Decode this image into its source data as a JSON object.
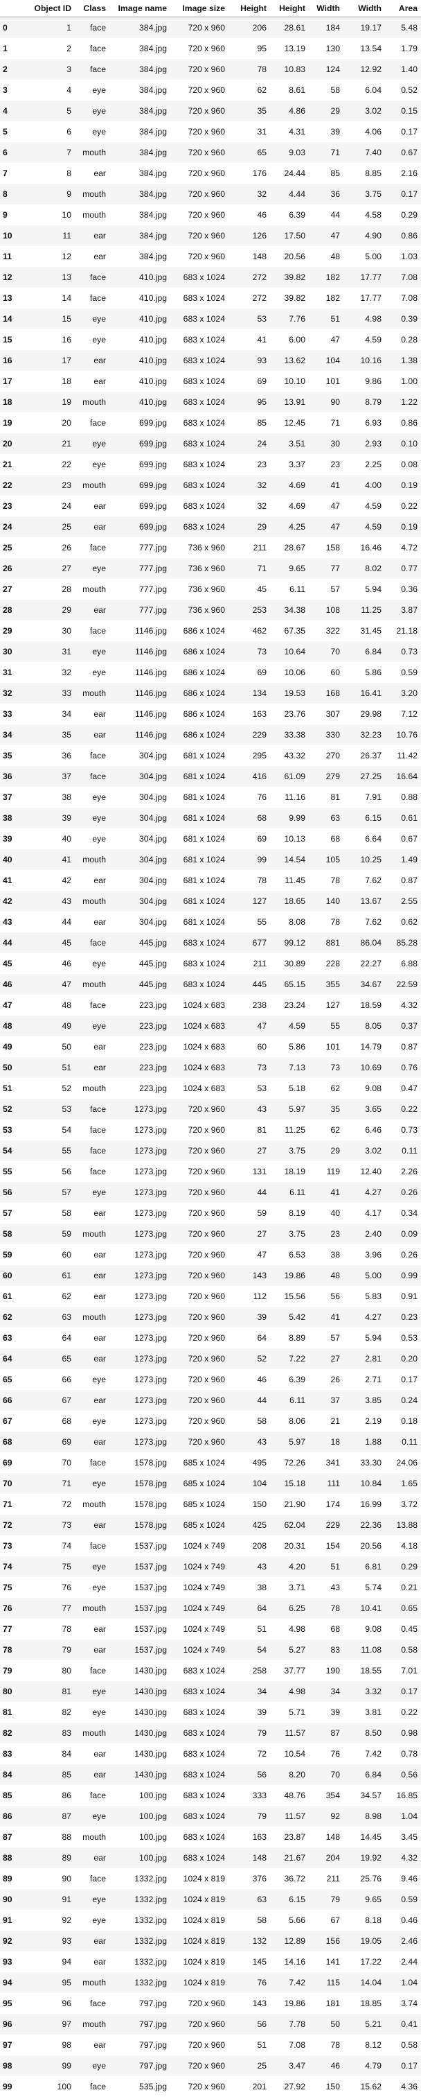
{
  "table": {
    "index_header": "",
    "columns": [
      "Object ID",
      "Class",
      "Image name",
      "Image size",
      "Height",
      "Height",
      "Width",
      "Width",
      "Area"
    ],
    "rows": [
      [
        "0",
        "1",
        "face",
        "384.jpg",
        "720 x 960",
        "206",
        "28.61",
        "184",
        "19.17",
        "5.48"
      ],
      [
        "1",
        "2",
        "face",
        "384.jpg",
        "720 x 960",
        "95",
        "13.19",
        "130",
        "13.54",
        "1.79"
      ],
      [
        "2",
        "3",
        "face",
        "384.jpg",
        "720 x 960",
        "78",
        "10.83",
        "124",
        "12.92",
        "1.40"
      ],
      [
        "3",
        "4",
        "eye",
        "384.jpg",
        "720 x 960",
        "62",
        "8.61",
        "58",
        "6.04",
        "0.52"
      ],
      [
        "4",
        "5",
        "eye",
        "384.jpg",
        "720 x 960",
        "35",
        "4.86",
        "29",
        "3.02",
        "0.15"
      ],
      [
        "5",
        "6",
        "eye",
        "384.jpg",
        "720 x 960",
        "31",
        "4.31",
        "39",
        "4.06",
        "0.17"
      ],
      [
        "6",
        "7",
        "mouth",
        "384.jpg",
        "720 x 960",
        "65",
        "9.03",
        "71",
        "7.40",
        "0.67"
      ],
      [
        "7",
        "8",
        "ear",
        "384.jpg",
        "720 x 960",
        "176",
        "24.44",
        "85",
        "8.85",
        "2.16"
      ],
      [
        "8",
        "9",
        "mouth",
        "384.jpg",
        "720 x 960",
        "32",
        "4.44",
        "36",
        "3.75",
        "0.17"
      ],
      [
        "9",
        "10",
        "mouth",
        "384.jpg",
        "720 x 960",
        "46",
        "6.39",
        "44",
        "4.58",
        "0.29"
      ],
      [
        "10",
        "11",
        "ear",
        "384.jpg",
        "720 x 960",
        "126",
        "17.50",
        "47",
        "4.90",
        "0.86"
      ],
      [
        "11",
        "12",
        "ear",
        "384.jpg",
        "720 x 960",
        "148",
        "20.56",
        "48",
        "5.00",
        "1.03"
      ],
      [
        "12",
        "13",
        "face",
        "410.jpg",
        "683 x 1024",
        "272",
        "39.82",
        "182",
        "17.77",
        "7.08"
      ],
      [
        "13",
        "14",
        "face",
        "410.jpg",
        "683 x 1024",
        "272",
        "39.82",
        "182",
        "17.77",
        "7.08"
      ],
      [
        "14",
        "15",
        "eye",
        "410.jpg",
        "683 x 1024",
        "53",
        "7.76",
        "51",
        "4.98",
        "0.39"
      ],
      [
        "15",
        "16",
        "eye",
        "410.jpg",
        "683 x 1024",
        "41",
        "6.00",
        "47",
        "4.59",
        "0.28"
      ],
      [
        "16",
        "17",
        "ear",
        "410.jpg",
        "683 x 1024",
        "93",
        "13.62",
        "104",
        "10.16",
        "1.38"
      ],
      [
        "17",
        "18",
        "ear",
        "410.jpg",
        "683 x 1024",
        "69",
        "10.10",
        "101",
        "9.86",
        "1.00"
      ],
      [
        "18",
        "19",
        "mouth",
        "410.jpg",
        "683 x 1024",
        "95",
        "13.91",
        "90",
        "8.79",
        "1.22"
      ],
      [
        "19",
        "20",
        "face",
        "699.jpg",
        "683 x 1024",
        "85",
        "12.45",
        "71",
        "6.93",
        "0.86"
      ],
      [
        "20",
        "21",
        "eye",
        "699.jpg",
        "683 x 1024",
        "24",
        "3.51",
        "30",
        "2.93",
        "0.10"
      ],
      [
        "21",
        "22",
        "eye",
        "699.jpg",
        "683 x 1024",
        "23",
        "3.37",
        "23",
        "2.25",
        "0.08"
      ],
      [
        "22",
        "23",
        "mouth",
        "699.jpg",
        "683 x 1024",
        "32",
        "4.69",
        "41",
        "4.00",
        "0.19"
      ],
      [
        "23",
        "24",
        "ear",
        "699.jpg",
        "683 x 1024",
        "32",
        "4.69",
        "47",
        "4.59",
        "0.22"
      ],
      [
        "24",
        "25",
        "ear",
        "699.jpg",
        "683 x 1024",
        "29",
        "4.25",
        "47",
        "4.59",
        "0.19"
      ],
      [
        "25",
        "26",
        "face",
        "777.jpg",
        "736 x 960",
        "211",
        "28.67",
        "158",
        "16.46",
        "4.72"
      ],
      [
        "26",
        "27",
        "eye",
        "777.jpg",
        "736 x 960",
        "71",
        "9.65",
        "77",
        "8.02",
        "0.77"
      ],
      [
        "27",
        "28",
        "mouth",
        "777.jpg",
        "736 x 960",
        "45",
        "6.11",
        "57",
        "5.94",
        "0.36"
      ],
      [
        "28",
        "29",
        "ear",
        "777.jpg",
        "736 x 960",
        "253",
        "34.38",
        "108",
        "11.25",
        "3.87"
      ],
      [
        "29",
        "30",
        "face",
        "1146.jpg",
        "686 x 1024",
        "462",
        "67.35",
        "322",
        "31.45",
        "21.18"
      ],
      [
        "30",
        "31",
        "eye",
        "1146.jpg",
        "686 x 1024",
        "73",
        "10.64",
        "70",
        "6.84",
        "0.73"
      ],
      [
        "31",
        "32",
        "eye",
        "1146.jpg",
        "686 x 1024",
        "69",
        "10.06",
        "60",
        "5.86",
        "0.59"
      ],
      [
        "32",
        "33",
        "mouth",
        "1146.jpg",
        "686 x 1024",
        "134",
        "19.53",
        "168",
        "16.41",
        "3.20"
      ],
      [
        "33",
        "34",
        "ear",
        "1146.jpg",
        "686 x 1024",
        "163",
        "23.76",
        "307",
        "29.98",
        "7.12"
      ],
      [
        "34",
        "35",
        "ear",
        "1146.jpg",
        "686 x 1024",
        "229",
        "33.38",
        "330",
        "32.23",
        "10.76"
      ],
      [
        "35",
        "36",
        "face",
        "304.jpg",
        "681 x 1024",
        "295",
        "43.32",
        "270",
        "26.37",
        "11.42"
      ],
      [
        "36",
        "37",
        "face",
        "304.jpg",
        "681 x 1024",
        "416",
        "61.09",
        "279",
        "27.25",
        "16.64"
      ],
      [
        "37",
        "38",
        "eye",
        "304.jpg",
        "681 x 1024",
        "76",
        "11.16",
        "81",
        "7.91",
        "0.88"
      ],
      [
        "38",
        "39",
        "eye",
        "304.jpg",
        "681 x 1024",
        "68",
        "9.99",
        "63",
        "6.15",
        "0.61"
      ],
      [
        "39",
        "40",
        "eye",
        "304.jpg",
        "681 x 1024",
        "69",
        "10.13",
        "68",
        "6.64",
        "0.67"
      ],
      [
        "40",
        "41",
        "mouth",
        "304.jpg",
        "681 x 1024",
        "99",
        "14.54",
        "105",
        "10.25",
        "1.49"
      ],
      [
        "41",
        "42",
        "ear",
        "304.jpg",
        "681 x 1024",
        "78",
        "11.45",
        "78",
        "7.62",
        "0.87"
      ],
      [
        "42",
        "43",
        "mouth",
        "304.jpg",
        "681 x 1024",
        "127",
        "18.65",
        "140",
        "13.67",
        "2.55"
      ],
      [
        "43",
        "44",
        "ear",
        "304.jpg",
        "681 x 1024",
        "55",
        "8.08",
        "78",
        "7.62",
        "0.62"
      ],
      [
        "44",
        "45",
        "face",
        "445.jpg",
        "683 x 1024",
        "677",
        "99.12",
        "881",
        "86.04",
        "85.28"
      ],
      [
        "45",
        "46",
        "eye",
        "445.jpg",
        "683 x 1024",
        "211",
        "30.89",
        "228",
        "22.27",
        "6.88"
      ],
      [
        "46",
        "47",
        "mouth",
        "445.jpg",
        "683 x 1024",
        "445",
        "65.15",
        "355",
        "34.67",
        "22.59"
      ],
      [
        "47",
        "48",
        "face",
        "223.jpg",
        "1024 x 683",
        "238",
        "23.24",
        "127",
        "18.59",
        "4.32"
      ],
      [
        "48",
        "49",
        "eye",
        "223.jpg",
        "1024 x 683",
        "47",
        "4.59",
        "55",
        "8.05",
        "0.37"
      ],
      [
        "49",
        "50",
        "ear",
        "223.jpg",
        "1024 x 683",
        "60",
        "5.86",
        "101",
        "14.79",
        "0.87"
      ],
      [
        "50",
        "51",
        "ear",
        "223.jpg",
        "1024 x 683",
        "73",
        "7.13",
        "73",
        "10.69",
        "0.76"
      ],
      [
        "51",
        "52",
        "mouth",
        "223.jpg",
        "1024 x 683",
        "53",
        "5.18",
        "62",
        "9.08",
        "0.47"
      ],
      [
        "52",
        "53",
        "face",
        "1273.jpg",
        "720 x 960",
        "43",
        "5.97",
        "35",
        "3.65",
        "0.22"
      ],
      [
        "53",
        "54",
        "face",
        "1273.jpg",
        "720 x 960",
        "81",
        "11.25",
        "62",
        "6.46",
        "0.73"
      ],
      [
        "54",
        "55",
        "face",
        "1273.jpg",
        "720 x 960",
        "27",
        "3.75",
        "29",
        "3.02",
        "0.11"
      ],
      [
        "55",
        "56",
        "face",
        "1273.jpg",
        "720 x 960",
        "131",
        "18.19",
        "119",
        "12.40",
        "2.26"
      ],
      [
        "56",
        "57",
        "eye",
        "1273.jpg",
        "720 x 960",
        "44",
        "6.11",
        "41",
        "4.27",
        "0.26"
      ],
      [
        "57",
        "58",
        "ear",
        "1273.jpg",
        "720 x 960",
        "59",
        "8.19",
        "40",
        "4.17",
        "0.34"
      ],
      [
        "58",
        "59",
        "mouth",
        "1273.jpg",
        "720 x 960",
        "27",
        "3.75",
        "23",
        "2.40",
        "0.09"
      ],
      [
        "59",
        "60",
        "ear",
        "1273.jpg",
        "720 x 960",
        "47",
        "6.53",
        "38",
        "3.96",
        "0.26"
      ],
      [
        "60",
        "61",
        "ear",
        "1273.jpg",
        "720 x 960",
        "143",
        "19.86",
        "48",
        "5.00",
        "0.99"
      ],
      [
        "61",
        "62",
        "ear",
        "1273.jpg",
        "720 x 960",
        "112",
        "15.56",
        "56",
        "5.83",
        "0.91"
      ],
      [
        "62",
        "63",
        "mouth",
        "1273.jpg",
        "720 x 960",
        "39",
        "5.42",
        "41",
        "4.27",
        "0.23"
      ],
      [
        "63",
        "64",
        "ear",
        "1273.jpg",
        "720 x 960",
        "64",
        "8.89",
        "57",
        "5.94",
        "0.53"
      ],
      [
        "64",
        "65",
        "ear",
        "1273.jpg",
        "720 x 960",
        "52",
        "7.22",
        "27",
        "2.81",
        "0.20"
      ],
      [
        "65",
        "66",
        "eye",
        "1273.jpg",
        "720 x 960",
        "46",
        "6.39",
        "26",
        "2.71",
        "0.17"
      ],
      [
        "66",
        "67",
        "ear",
        "1273.jpg",
        "720 x 960",
        "44",
        "6.11",
        "37",
        "3.85",
        "0.24"
      ],
      [
        "67",
        "68",
        "eye",
        "1273.jpg",
        "720 x 960",
        "58",
        "8.06",
        "21",
        "2.19",
        "0.18"
      ],
      [
        "68",
        "69",
        "ear",
        "1273.jpg",
        "720 x 960",
        "43",
        "5.97",
        "18",
        "1.88",
        "0.11"
      ],
      [
        "69",
        "70",
        "face",
        "1578.jpg",
        "685 x 1024",
        "495",
        "72.26",
        "341",
        "33.30",
        "24.06"
      ],
      [
        "70",
        "71",
        "eye",
        "1578.jpg",
        "685 x 1024",
        "104",
        "15.18",
        "111",
        "10.84",
        "1.65"
      ],
      [
        "71",
        "72",
        "mouth",
        "1578.jpg",
        "685 x 1024",
        "150",
        "21.90",
        "174",
        "16.99",
        "3.72"
      ],
      [
        "72",
        "73",
        "ear",
        "1578.jpg",
        "685 x 1024",
        "425",
        "62.04",
        "229",
        "22.36",
        "13.88"
      ],
      [
        "73",
        "74",
        "face",
        "1537.jpg",
        "1024 x 749",
        "208",
        "20.31",
        "154",
        "20.56",
        "4.18"
      ],
      [
        "74",
        "75",
        "eye",
        "1537.jpg",
        "1024 x 749",
        "43",
        "4.20",
        "51",
        "6.81",
        "0.29"
      ],
      [
        "75",
        "76",
        "eye",
        "1537.jpg",
        "1024 x 749",
        "38",
        "3.71",
        "43",
        "5.74",
        "0.21"
      ],
      [
        "76",
        "77",
        "mouth",
        "1537.jpg",
        "1024 x 749",
        "64",
        "6.25",
        "78",
        "10.41",
        "0.65"
      ],
      [
        "77",
        "78",
        "ear",
        "1537.jpg",
        "1024 x 749",
        "51",
        "4.98",
        "68",
        "9.08",
        "0.45"
      ],
      [
        "78",
        "79",
        "ear",
        "1537.jpg",
        "1024 x 749",
        "54",
        "5.27",
        "83",
        "11.08",
        "0.58"
      ],
      [
        "79",
        "80",
        "face",
        "1430.jpg",
        "683 x 1024",
        "258",
        "37.77",
        "190",
        "18.55",
        "7.01"
      ],
      [
        "80",
        "81",
        "eye",
        "1430.jpg",
        "683 x 1024",
        "34",
        "4.98",
        "34",
        "3.32",
        "0.17"
      ],
      [
        "81",
        "82",
        "eye",
        "1430.jpg",
        "683 x 1024",
        "39",
        "5.71",
        "39",
        "3.81",
        "0.22"
      ],
      [
        "82",
        "83",
        "mouth",
        "1430.jpg",
        "683 x 1024",
        "79",
        "11.57",
        "87",
        "8.50",
        "0.98"
      ],
      [
        "83",
        "84",
        "ear",
        "1430.jpg",
        "683 x 1024",
        "72",
        "10.54",
        "76",
        "7.42",
        "0.78"
      ],
      [
        "84",
        "85",
        "ear",
        "1430.jpg",
        "683 x 1024",
        "56",
        "8.20",
        "70",
        "6.84",
        "0.56"
      ],
      [
        "85",
        "86",
        "face",
        "100.jpg",
        "683 x 1024",
        "333",
        "48.76",
        "354",
        "34.57",
        "16.85"
      ],
      [
        "86",
        "87",
        "eye",
        "100.jpg",
        "683 x 1024",
        "79",
        "11.57",
        "92",
        "8.98",
        "1.04"
      ],
      [
        "87",
        "88",
        "mouth",
        "100.jpg",
        "683 x 1024",
        "163",
        "23.87",
        "148",
        "14.45",
        "3.45"
      ],
      [
        "88",
        "89",
        "ear",
        "100.jpg",
        "683 x 1024",
        "148",
        "21.67",
        "204",
        "19.92",
        "4.32"
      ],
      [
        "89",
        "90",
        "face",
        "1332.jpg",
        "1024 x 819",
        "376",
        "36.72",
        "211",
        "25.76",
        "9.46"
      ],
      [
        "90",
        "91",
        "eye",
        "1332.jpg",
        "1024 x 819",
        "63",
        "6.15",
        "79",
        "9.65",
        "0.59"
      ],
      [
        "91",
        "92",
        "eye",
        "1332.jpg",
        "1024 x 819",
        "58",
        "5.66",
        "67",
        "8.18",
        "0.46"
      ],
      [
        "92",
        "93",
        "ear",
        "1332.jpg",
        "1024 x 819",
        "132",
        "12.89",
        "156",
        "19.05",
        "2.46"
      ],
      [
        "93",
        "94",
        "ear",
        "1332.jpg",
        "1024 x 819",
        "145",
        "14.16",
        "141",
        "17.22",
        "2.44"
      ],
      [
        "94",
        "95",
        "mouth",
        "1332.jpg",
        "1024 x 819",
        "76",
        "7.42",
        "115",
        "14.04",
        "1.04"
      ],
      [
        "95",
        "96",
        "face",
        "797.jpg",
        "720 x 960",
        "143",
        "19.86",
        "181",
        "18.85",
        "3.74"
      ],
      [
        "96",
        "97",
        "mouth",
        "797.jpg",
        "720 x 960",
        "56",
        "7.78",
        "50",
        "5.21",
        "0.41"
      ],
      [
        "97",
        "98",
        "ear",
        "797.jpg",
        "720 x 960",
        "51",
        "7.08",
        "78",
        "8.12",
        "0.58"
      ],
      [
        "98",
        "99",
        "eye",
        "797.jpg",
        "720 x 960",
        "25",
        "3.47",
        "46",
        "4.79",
        "0.17"
      ],
      [
        "99",
        "100",
        "face",
        "535.jpg",
        "720 x 960",
        "201",
        "27.92",
        "150",
        "15.62",
        "4.36"
      ]
    ]
  }
}
